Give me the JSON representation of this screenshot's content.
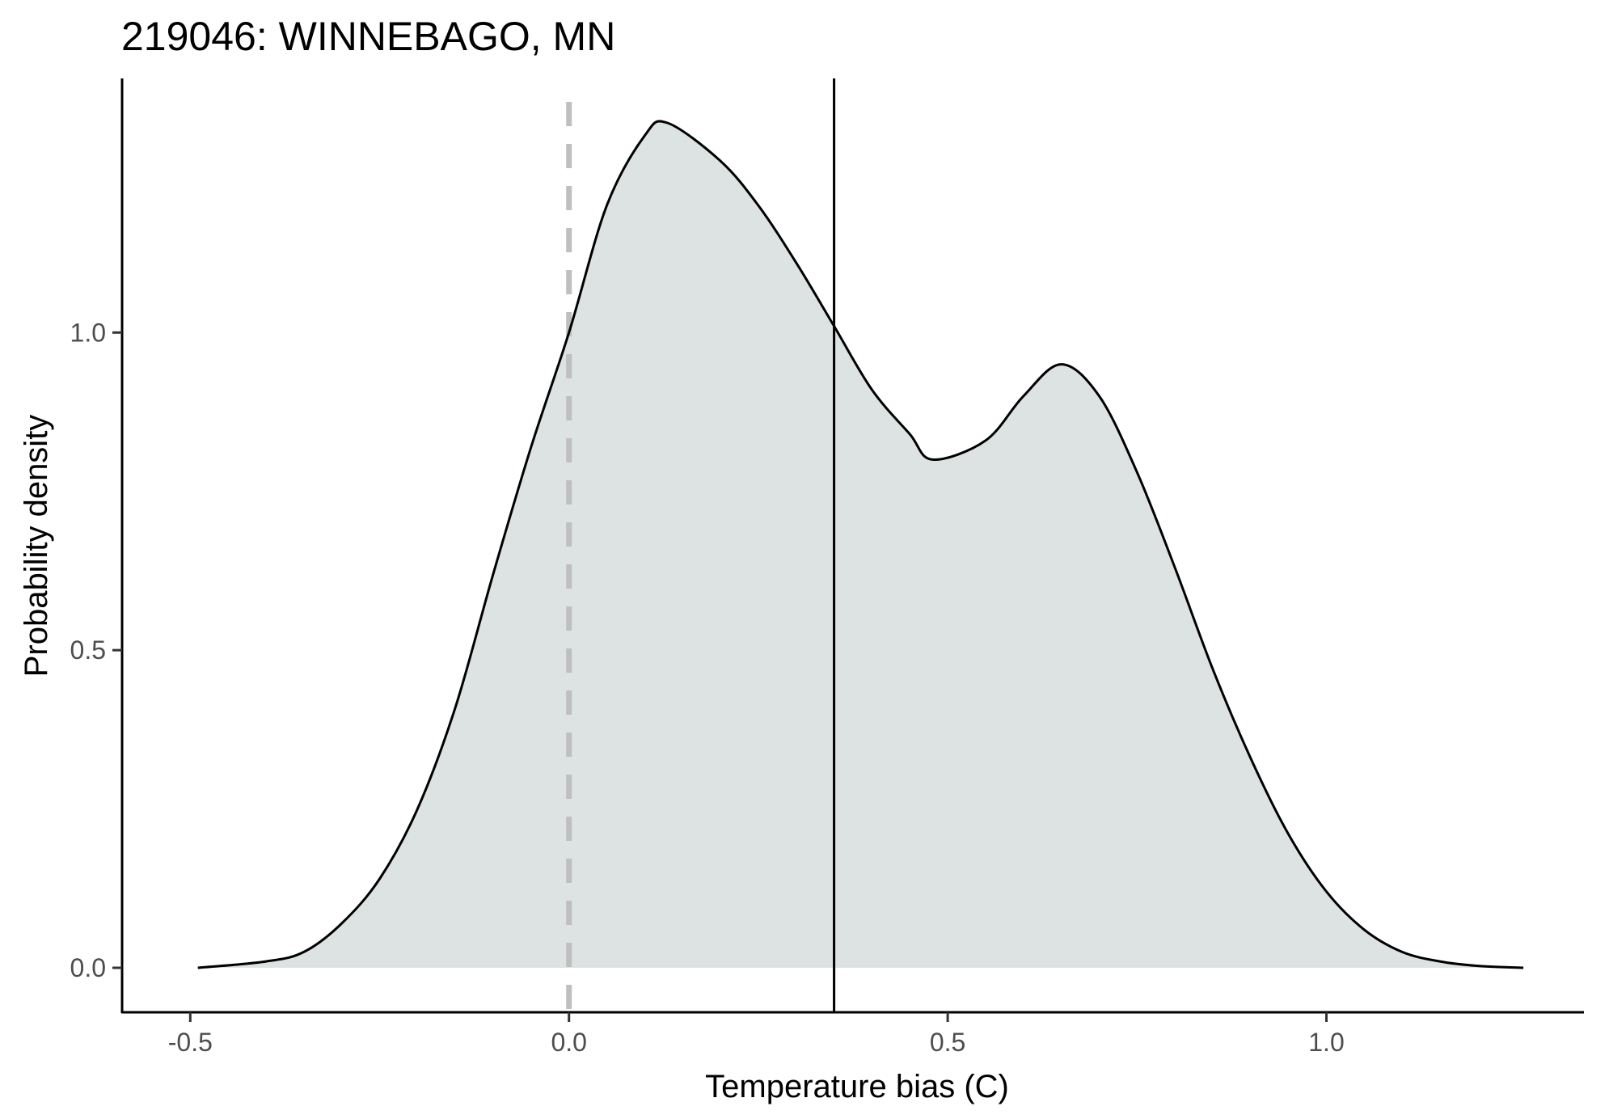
{
  "chart_data": {
    "type": "area",
    "title": "219046: WINNEBAGO, MN",
    "xlabel": "Temperature bias (C)",
    "ylabel": "Probability density",
    "xlim": [
      -0.59,
      1.34
    ],
    "ylim": [
      -0.07,
      1.4
    ],
    "xticks": [
      -0.5,
      0.0,
      0.5,
      1.0
    ],
    "xtick_labels": [
      "-0.5",
      "0.0",
      "0.5",
      "1.0"
    ],
    "yticks": [
      0.0,
      0.5,
      1.0
    ],
    "ytick_labels": [
      "0.0",
      "0.5",
      "1.0"
    ],
    "grid": false,
    "legend": "none",
    "fill_color": "#dde2e3",
    "line_color": "#000000",
    "reference_lines": [
      {
        "x": 0.0,
        "style": "dashed",
        "color": "#bfbfbf"
      },
      {
        "x": 0.35,
        "style": "solid",
        "color": "#000000"
      }
    ],
    "series": [
      {
        "x": [
          -0.49,
          -0.4,
          -0.35,
          -0.3,
          -0.25,
          -0.2,
          -0.15,
          -0.1,
          -0.05,
          0.0,
          0.05,
          0.1,
          0.13,
          0.2,
          0.25,
          0.3,
          0.35,
          0.4,
          0.45,
          0.48,
          0.55,
          0.6,
          0.65,
          0.7,
          0.75,
          0.8,
          0.85,
          0.9,
          0.95,
          1.0,
          1.05,
          1.1,
          1.15,
          1.2,
          1.26
        ],
        "y": [
          0.0,
          0.01,
          0.025,
          0.07,
          0.14,
          0.25,
          0.41,
          0.62,
          0.82,
          1.0,
          1.2,
          1.31,
          1.33,
          1.27,
          1.2,
          1.11,
          1.01,
          0.91,
          0.84,
          0.8,
          0.83,
          0.9,
          0.95,
          0.9,
          0.78,
          0.63,
          0.47,
          0.33,
          0.21,
          0.12,
          0.06,
          0.025,
          0.01,
          0.003,
          0.0
        ]
      }
    ]
  }
}
